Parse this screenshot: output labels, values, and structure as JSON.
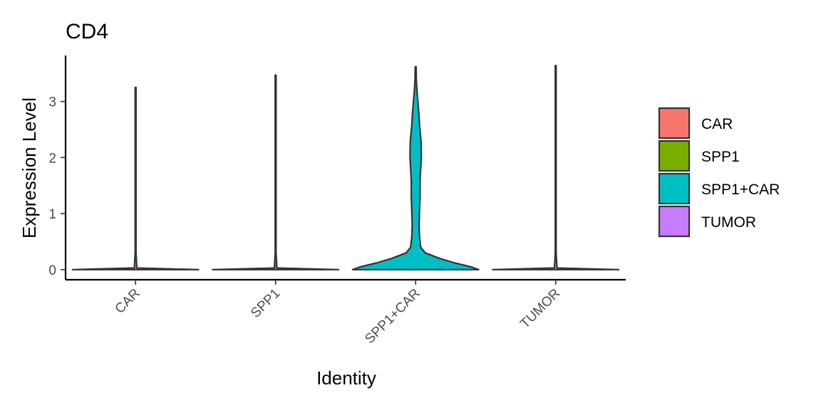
{
  "chart_data": {
    "type": "violin",
    "title": "CD4",
    "xlabel": "Identity",
    "ylabel": "Expression Level",
    "ylim": [
      -0.18,
      3.82
    ],
    "yticks": [
      0,
      1,
      2,
      3
    ],
    "categories": [
      "CAR",
      "SPP1",
      "SPP1+CAR",
      "TUMOR"
    ],
    "series": [
      {
        "name": "CAR",
        "color": "#F8766D",
        "max": 3.25,
        "profile": [
          [
            0,
            1.0
          ],
          [
            0.03,
            0.02
          ],
          [
            0.3,
            0.005
          ],
          [
            3.25,
            0.003
          ]
        ]
      },
      {
        "name": "SPP1",
        "color": "#7CAE00",
        "max": 3.47,
        "profile": [
          [
            0,
            1.0
          ],
          [
            0.03,
            0.02
          ],
          [
            0.3,
            0.005
          ],
          [
            3.47,
            0.003
          ]
        ]
      },
      {
        "name": "SPP1+CAR",
        "color": "#00BFC4",
        "max": 3.62,
        "profile": [
          [
            0,
            1.0
          ],
          [
            0.05,
            0.88
          ],
          [
            0.12,
            0.62
          ],
          [
            0.2,
            0.38
          ],
          [
            0.3,
            0.15
          ],
          [
            0.4,
            0.08
          ],
          [
            0.6,
            0.06
          ],
          [
            0.8,
            0.055
          ],
          [
            1.0,
            0.06
          ],
          [
            1.3,
            0.07
          ],
          [
            1.6,
            0.07
          ],
          [
            1.8,
            0.08
          ],
          [
            2.0,
            0.09
          ],
          [
            2.3,
            0.085
          ],
          [
            2.6,
            0.06
          ],
          [
            2.8,
            0.05
          ],
          [
            3.0,
            0.035
          ],
          [
            3.2,
            0.02
          ],
          [
            3.4,
            0.01
          ],
          [
            3.62,
            0.003
          ]
        ]
      },
      {
        "name": "TUMOR",
        "color": "#C77CFF",
        "max": 3.64,
        "profile": [
          [
            0,
            1.0
          ],
          [
            0.03,
            0.02
          ],
          [
            0.3,
            0.005
          ],
          [
            3.64,
            0.003
          ]
        ]
      }
    ],
    "legend_position": "right",
    "grid": false
  }
}
